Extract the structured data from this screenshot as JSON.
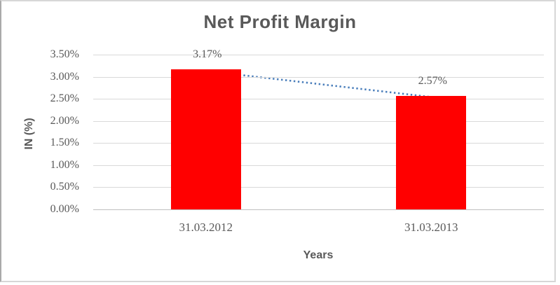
{
  "chart_data": {
    "type": "bar",
    "title": "Net Profit Margin",
    "xlabel": "Years",
    "ylabel": "IN (%)",
    "categories": [
      "31.03.2012",
      "31.03.2013"
    ],
    "values": [
      3.17,
      2.57
    ],
    "data_labels": [
      "3.17%",
      "2.57%"
    ],
    "yticks": [
      "3.50%",
      "3.00%",
      "2.50%",
      "2.00%",
      "1.50%",
      "1.00%",
      "0.50%",
      "0.00%"
    ],
    "ylim": [
      0,
      3.5
    ],
    "grid": true,
    "legend": "none",
    "bar_color": "#FF0000",
    "trendline": {
      "type": "linear",
      "style": "dotted",
      "color": "#4A7EBB"
    },
    "text_color": "#595959",
    "gridline_color": "#D9D9D9"
  }
}
